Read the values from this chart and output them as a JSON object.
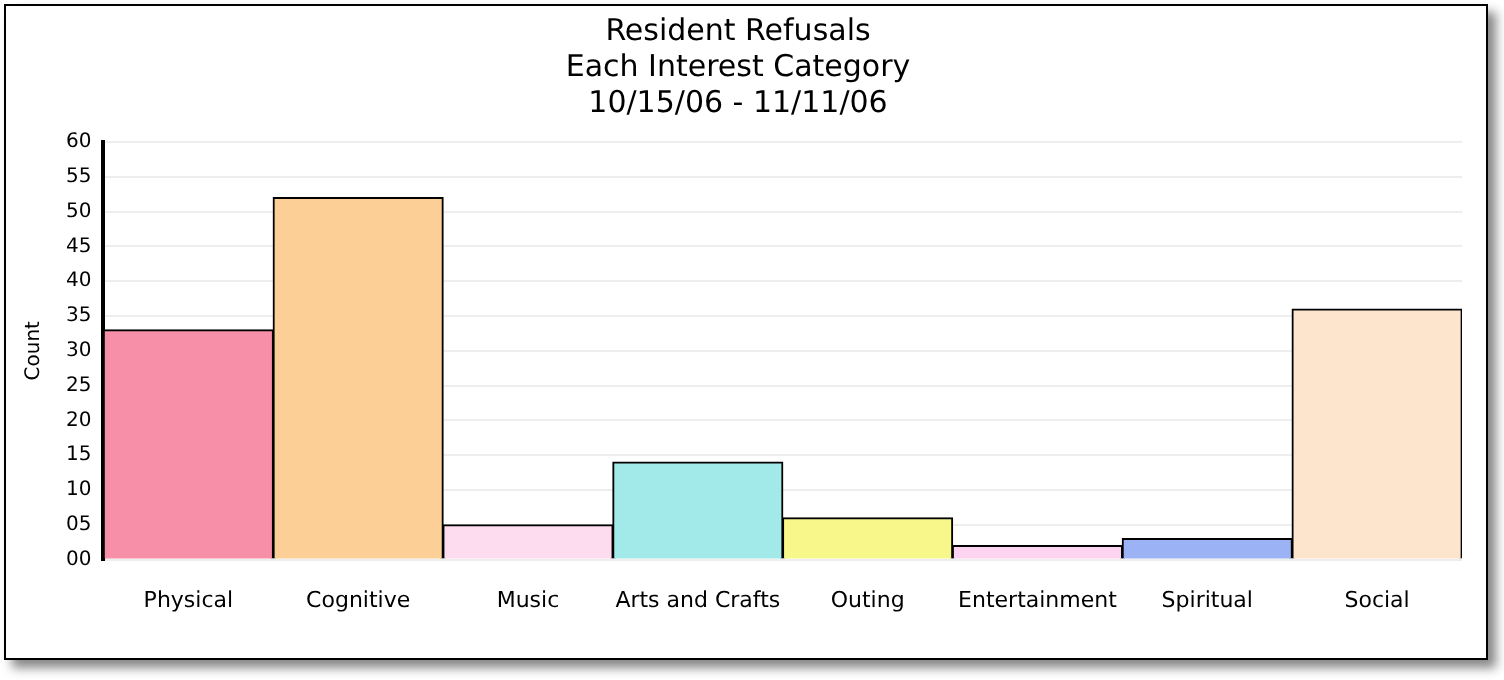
{
  "chart_data": {
    "type": "bar",
    "title": "Resident Refusals\nEach Interest Category\n10/15/06 - 11/11/06",
    "ylabel": "Count",
    "categories": [
      "Physical",
      "Cognitive",
      "Music",
      "Arts and Crafts",
      "Outing",
      "Entertainment",
      "Spiritual",
      "Social"
    ],
    "values": [
      33,
      52,
      5,
      14,
      6,
      2,
      3,
      36
    ],
    "colors": [
      "#f78fa8",
      "#fbcf95",
      "#fcdcee",
      "#a2e9e9",
      "#f8f88a",
      "#fcd4f2",
      "#9bb3f4",
      "#fde5cd"
    ],
    "ylim": [
      0,
      60
    ],
    "yticks": [
      {
        "value": 0,
        "label": "00"
      },
      {
        "value": 5,
        "label": "05"
      },
      10,
      15,
      20,
      25,
      30,
      35,
      40,
      45,
      50,
      55,
      60
    ],
    "grid": "y",
    "legend": false
  }
}
